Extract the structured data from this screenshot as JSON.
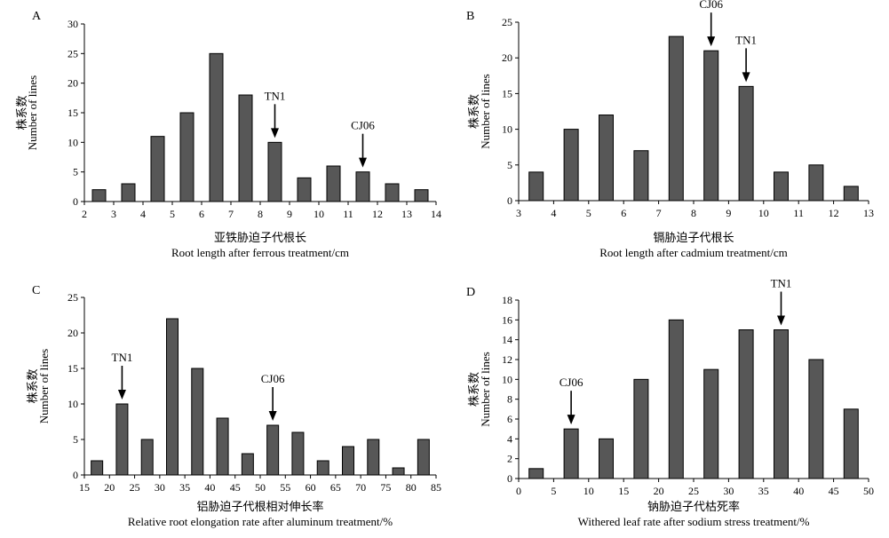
{
  "chart_data": [
    {
      "id": "A",
      "type": "bar",
      "panel_label": "A",
      "ylabel_cn": "株系数",
      "ylabel": "Number of lines",
      "xlabel_cn": "亚铁胁迫子代根长",
      "xlabel": "Root length after ferrous treatment/cm",
      "xlim": [
        2,
        14
      ],
      "xticks": [
        2,
        3,
        4,
        5,
        6,
        7,
        8,
        9,
        10,
        11,
        12,
        13,
        14
      ],
      "ylim": [
        0,
        30
      ],
      "yticks": [
        0,
        5,
        10,
        15,
        20,
        25,
        30
      ],
      "x": [
        2.5,
        3.5,
        4.5,
        5.5,
        6.5,
        7.5,
        8.5,
        9.5,
        10.5,
        11.5,
        12.5,
        13.5
      ],
      "values": [
        2,
        3,
        11,
        15,
        25,
        18,
        10,
        4,
        6,
        5,
        3,
        2
      ],
      "annotations": [
        {
          "label": "TN1",
          "x": 8.5,
          "y": 10
        },
        {
          "label": "CJ06",
          "x": 11.5,
          "y": 5
        }
      ]
    },
    {
      "id": "B",
      "type": "bar",
      "panel_label": "B",
      "ylabel_cn": "株系数",
      "ylabel": "Number of lines",
      "xlabel_cn": "镉胁迫子代根长",
      "xlabel": "Root length after cadmium treatment/cm",
      "xlim": [
        3,
        13
      ],
      "xticks": [
        3,
        4,
        5,
        6,
        7,
        8,
        9,
        10,
        11,
        12,
        13
      ],
      "ylim": [
        0,
        25
      ],
      "yticks": [
        0,
        5,
        10,
        15,
        20,
        25
      ],
      "x": [
        3.5,
        4.5,
        5.5,
        6.5,
        7.5,
        8.5,
        9.5,
        10.5,
        11.5,
        12.5
      ],
      "values": [
        4,
        10,
        12,
        7,
        23,
        21,
        16,
        4,
        5,
        2
      ],
      "annotations": [
        {
          "label": "CJ06",
          "x": 8.5,
          "y": 21
        },
        {
          "label": "TN1",
          "x": 9.5,
          "y": 16
        }
      ]
    },
    {
      "id": "C",
      "type": "bar",
      "panel_label": "C",
      "ylabel_cn": "株系数",
      "ylabel": "Number of lines",
      "xlabel_cn": "铝胁迫子代根相对伸长率",
      "xlabel": "Relative root elongation rate after aluminum treatment/%",
      "xlim": [
        15,
        85
      ],
      "xticks": [
        15,
        20,
        25,
        30,
        35,
        40,
        45,
        50,
        55,
        60,
        65,
        70,
        75,
        80,
        85
      ],
      "ylim": [
        0,
        25
      ],
      "yticks": [
        0,
        5,
        10,
        15,
        20,
        25
      ],
      "x": [
        17.5,
        22.5,
        27.5,
        32.5,
        37.5,
        42.5,
        47.5,
        52.5,
        57.5,
        62.5,
        67.5,
        72.5,
        77.5,
        82.5
      ],
      "values": [
        2,
        10,
        5,
        22,
        15,
        8,
        3,
        7,
        6,
        2,
        4,
        5,
        1,
        5
      ],
      "annotations": [
        {
          "label": "TN1",
          "x": 22.5,
          "y": 10
        },
        {
          "label": "CJ06",
          "x": 52.5,
          "y": 7
        }
      ]
    },
    {
      "id": "D",
      "type": "bar",
      "panel_label": "D",
      "ylabel_cn": "株系数",
      "ylabel": "Number of lines",
      "xlabel_cn": "钠胁迫子代枯死率",
      "xlabel": "Withered leaf rate after sodium stress treatment/%",
      "xlim": [
        0,
        50
      ],
      "xticks": [
        0,
        5,
        10,
        15,
        20,
        25,
        30,
        35,
        40,
        45,
        50
      ],
      "ylim": [
        0,
        18
      ],
      "yticks": [
        0,
        2,
        4,
        6,
        8,
        10,
        12,
        14,
        16,
        18
      ],
      "x": [
        2.5,
        7.5,
        12.5,
        17.5,
        22.5,
        27.5,
        32.5,
        37.5,
        42.5,
        47.5
      ],
      "values": [
        1,
        5,
        4,
        10,
        16,
        11,
        15,
        15,
        12,
        7
      ],
      "annotations": [
        {
          "label": "CJ06",
          "x": 7.5,
          "y": 5
        },
        {
          "label": "TN1",
          "x": 37.5,
          "y": 15
        }
      ]
    }
  ]
}
